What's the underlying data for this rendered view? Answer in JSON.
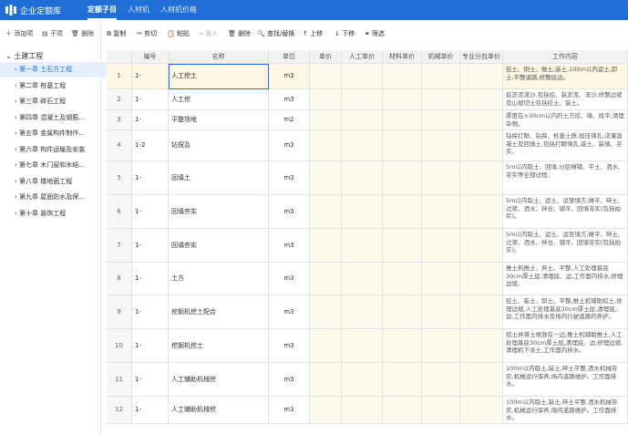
{
  "header": {
    "logo": "企业定额库",
    "tabs": [
      "定额子目",
      "人材机",
      "人材机价格"
    ]
  },
  "sidebar": {
    "toolbar": [
      "添加项",
      "子项",
      "删除"
    ],
    "root": "土建工程",
    "chapters": [
      "第一章 土石方工程",
      "第二章 桩基工程",
      "第三章 砖石工程",
      "第四章 混凝土及钢筋...",
      "第五章 金属构件制作...",
      "第六章 构件运输及安装",
      "第七章 木门窗和木结...",
      "第八章 楼地面工程",
      "第九章 屋面防水及保...",
      "第十章 装饰工程"
    ]
  },
  "toolbar": [
    "复制",
    "剪切",
    "粘贴",
    "插入",
    "删除",
    "查找/替换",
    "上移",
    "下移",
    "筛选"
  ],
  "table": {
    "columns": [
      "",
      "编号",
      "名称",
      "单位",
      "单价",
      "人工单价",
      "材料单价",
      "机械单价",
      "专业分包单价",
      "工作内容"
    ],
    "rows": [
      [
        "1",
        "1-",
        "人工挖土",
        "m3",
        "挖土、倒土、抛土,装土,100m以内运土,卸土,平整道路,修整底边。"
      ],
      [
        "2",
        "1-",
        "人工挖",
        "m3",
        "挖淤泥流沙,包括挖、装淤泥、流沙,修整边坡及山坡切土包括挖土、装土。"
      ],
      [
        "3",
        "1-",
        "平整场地",
        "m2",
        "厚度在±30cm以内的土方挖、填、找平;清理杂物。"
      ],
      [
        "4",
        "1-2",
        "钻探及",
        "m3",
        "钻探打眼、钻探、检查土质,加压填孔,浇灌混凝土及回填土,包括打眼填孔,装土、装填、夯实。"
      ],
      [
        "5",
        "1-",
        "回填土",
        "m3",
        "5m以内取土、回填,分层摊铺、平土、洒水、夯实等全部过程。"
      ],
      [
        "6",
        "1-",
        "回填夯实",
        "m3",
        "5m以内取土、运土、运至填方,摊平、碎土、过筛、洒水、拌合、铺平、回填夯实(包括拍实)。"
      ],
      [
        "7",
        "1-",
        "回填夯实",
        "m3",
        "5m以内取土、运土、运至填方,摊平、碎土、过筛、洒水、拌合、铺平、回填夯实(包括拍实)。"
      ],
      [
        "8",
        "1-",
        "土方",
        "m3",
        "推土机推土、弃土、平整,人工处理基底30cm厚土层,清理底、边,工作面内排水,修理边坡。"
      ],
      [
        "9",
        "1-",
        "挖掘机挖土配合",
        "m3",
        "挖土、装土、卸土、平整,推土机辅助挖土,修理边坡,人工处理基底30cm厚土层,清理底、边,工作面内排水及场内行驶道路的养护。"
      ],
      [
        "10",
        "1-",
        "挖掘机挖土",
        "m3",
        "挖土并将土堆放在一边,推土机辅助推土,人工处理基底30cm厚土层,清理底、边,修理边坡,清理机下余土,工作面内排水。"
      ],
      [
        "11",
        "1-",
        "人工辅助机械挖",
        "m3",
        "100m以内取土,装土,碎土平整,洒水机械夯实,机械运行保养,场内道路维护。工作面排水。"
      ],
      [
        "12",
        "1-",
        "人工辅助机械挖",
        "m3",
        "100m以内取土,装土,碎土平整,洒水机械夯实,机械运行保养,场内道路维护。工作面排水。"
      ]
    ]
  }
}
